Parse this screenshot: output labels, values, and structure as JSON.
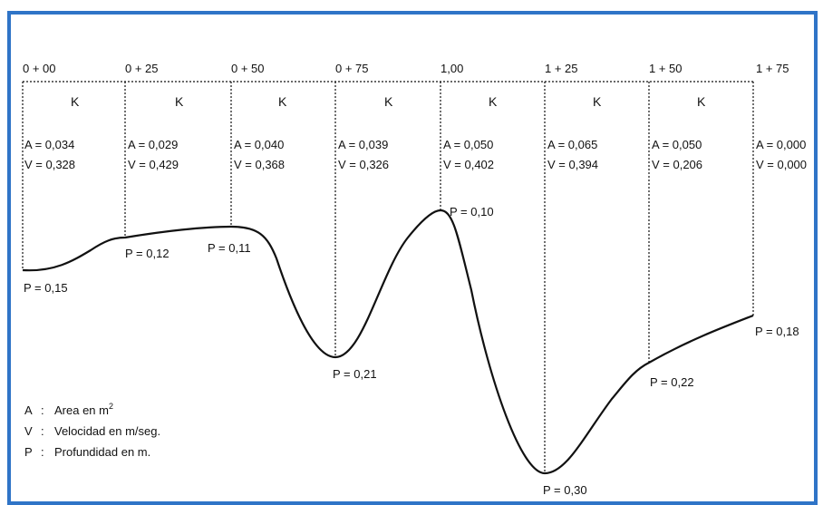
{
  "stations": [
    "0 + 00",
    "0 + 25",
    "0 + 50",
    "0 + 75",
    "1,00",
    "1 + 25",
    "1 + 50",
    "1 + 75"
  ],
  "section_label": "K",
  "sections": [
    {
      "area": "A = 0,034",
      "velocity": "V = 0,328"
    },
    {
      "area": "A = 0,029",
      "velocity": "V = 0,429"
    },
    {
      "area": "A = 0,040",
      "velocity": "V = 0,368"
    },
    {
      "area": "A = 0,039",
      "velocity": "V = 0,326"
    },
    {
      "area": "A = 0,050",
      "velocity": "V = 0,402"
    },
    {
      "area": "A = 0,065",
      "velocity": "V = 0,394"
    },
    {
      "area": "A = 0,050",
      "velocity": "V = 0,206"
    },
    {
      "area": "A = 0,000",
      "velocity": "V = 0,000"
    }
  ],
  "depths": [
    "P = 0,15",
    "P = 0,12",
    "P = 0,11",
    "P = 0,21",
    "P = 0,10",
    "P = 0,30",
    "P = 0,22",
    "P = 0,18"
  ],
  "legend": [
    {
      "key": "A",
      "sep": ":",
      "text": "Area en m",
      "sup": "2"
    },
    {
      "key": "V",
      "sep": ":",
      "text": "Velocidad en m/seg."
    },
    {
      "key": "P",
      "sep": ":",
      "text": "Profundidad en m."
    }
  ],
  "colors": {
    "frame": "#2f74c7",
    "ink": "#111111"
  }
}
